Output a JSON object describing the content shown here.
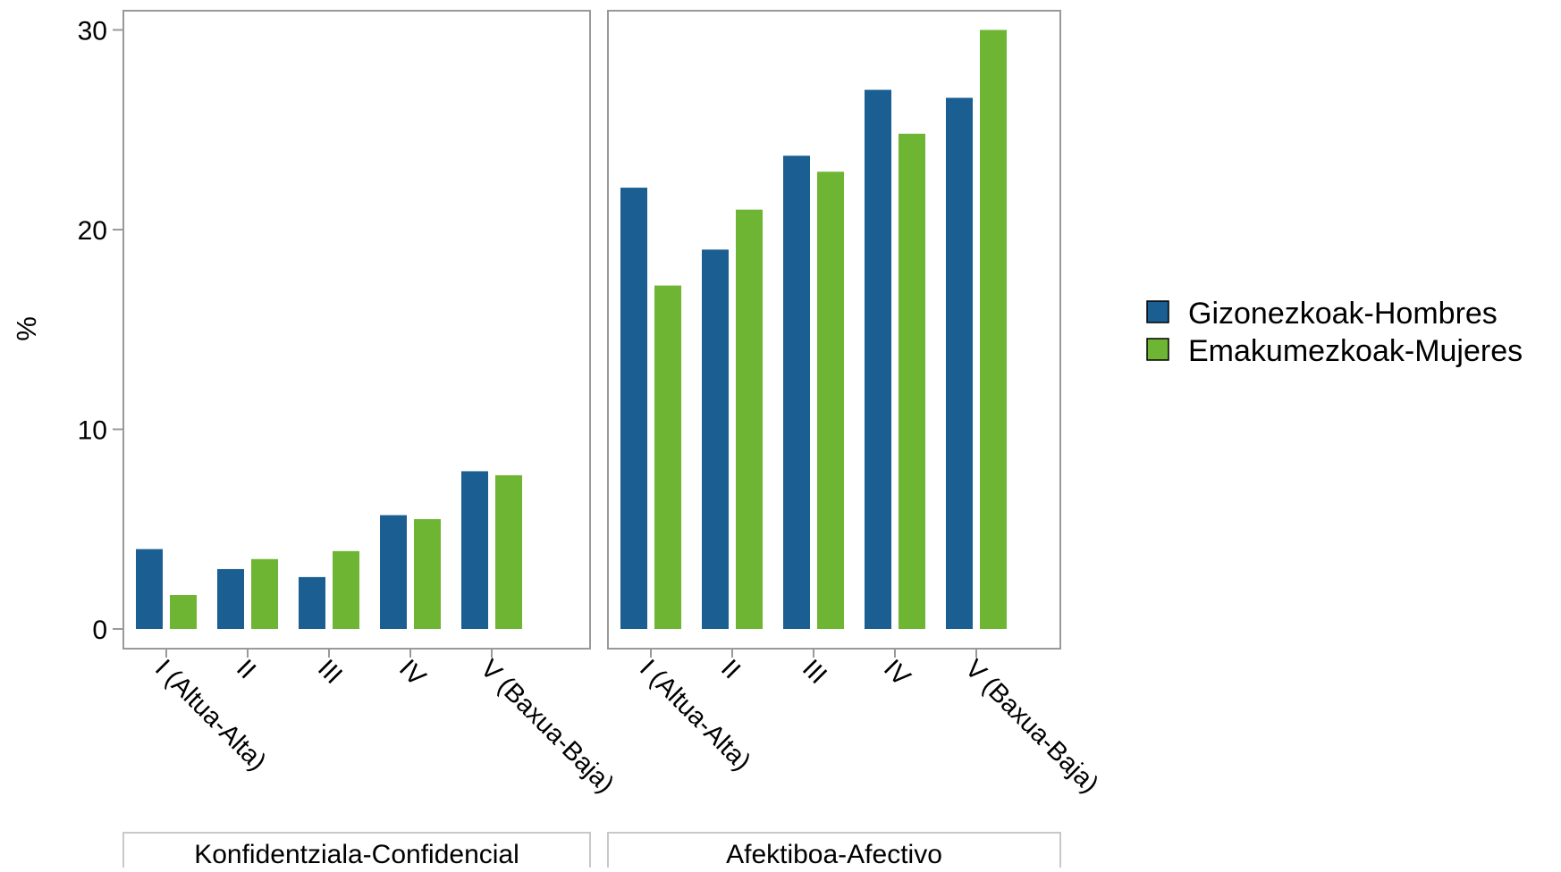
{
  "chart_data": {
    "type": "bar",
    "ylabel": "%",
    "ylim": [
      0,
      31
    ],
    "yticks": [
      0,
      10,
      20,
      30
    ],
    "categories": [
      "I (Altua-Alta)",
      "II",
      "III",
      "IV",
      "V (Baxua-Baja)"
    ],
    "legend_position": "right",
    "series": [
      {
        "name": "Gizonezkoak-Hombres",
        "color": "#1a5e92"
      },
      {
        "name": "Emakumezkoak-Mujeres",
        "color": "#6fb534"
      }
    ],
    "panels": [
      {
        "strip": "Konfidentziala-Confidencial",
        "values": [
          [
            4.0,
            3.0,
            2.6,
            5.7,
            7.9
          ],
          [
            1.7,
            3.5,
            3.9,
            5.5,
            7.7
          ]
        ]
      },
      {
        "strip": "Afektiboa-Afectivo",
        "values": [
          [
            22.1,
            19.0,
            23.7,
            27.0,
            26.6
          ],
          [
            17.2,
            21.0,
            22.9,
            24.8,
            30.0
          ]
        ]
      }
    ]
  }
}
